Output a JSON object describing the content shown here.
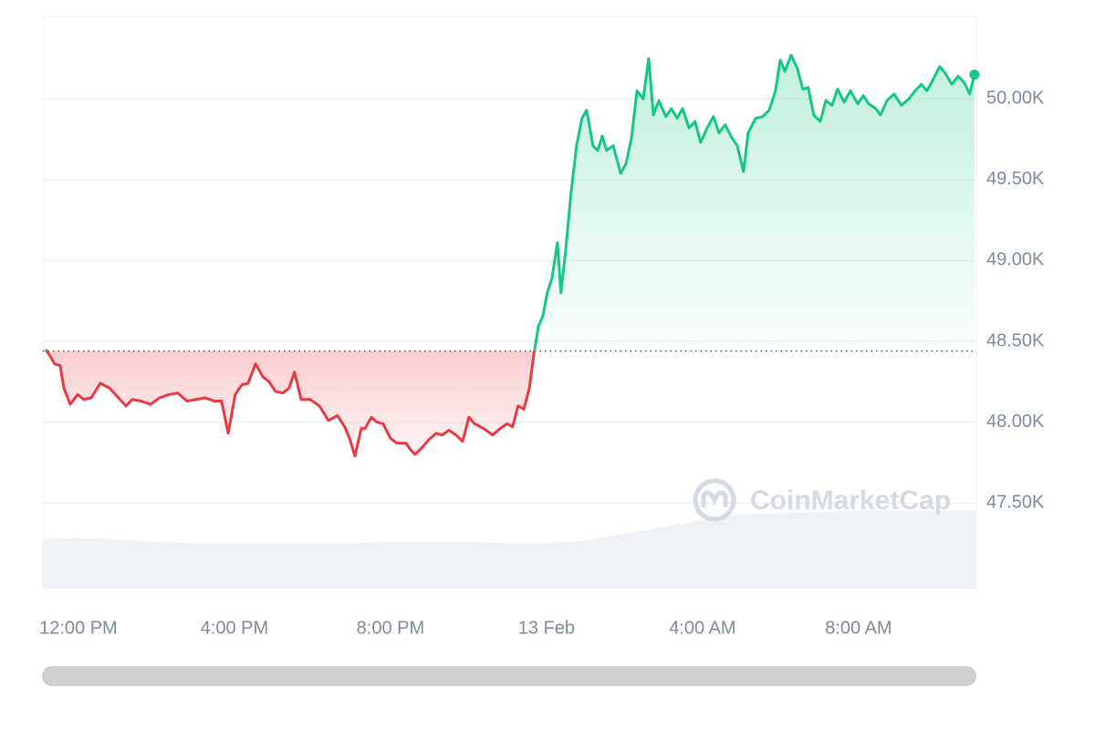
{
  "chart_data": {
    "type": "line",
    "baseline": 48440,
    "up_color": "#16c784",
    "down_color": "#ea3943",
    "watermark": "CoinMarketCap",
    "xlim": [
      11.09,
      35.02
    ],
    "ylim": [
      46970,
      50510
    ],
    "xticks": [
      {
        "value": 12,
        "label": "12:00 PM"
      },
      {
        "value": 16,
        "label": "4:00 PM"
      },
      {
        "value": 20,
        "label": "8:00 PM"
      },
      {
        "value": 24,
        "label": "13 Feb"
      },
      {
        "value": 28,
        "label": "4:00 AM"
      },
      {
        "value": 32,
        "label": "8:00 AM"
      }
    ],
    "yticks": [
      {
        "value": 47500,
        "label": "47.50K"
      },
      {
        "value": 48000,
        "label": "48.00K"
      },
      {
        "value": 48500,
        "label": "48.50K"
      },
      {
        "value": 49000,
        "label": "49.00K"
      },
      {
        "value": 49500,
        "label": "49.50K"
      },
      {
        "value": 50000,
        "label": "50.00K"
      }
    ],
    "grid": true,
    "x": [
      11.16,
      11.27,
      11.39,
      11.53,
      11.63,
      11.79,
      11.98,
      12.14,
      12.33,
      12.56,
      12.8,
      13.03,
      13.22,
      13.38,
      13.61,
      13.85,
      14.08,
      14.32,
      14.55,
      14.78,
      15.02,
      15.25,
      15.49,
      15.67,
      15.84,
      16.02,
      16.19,
      16.35,
      16.54,
      16.73,
      16.89,
      17.05,
      17.24,
      17.4,
      17.54,
      17.71,
      17.94,
      18.18,
      18.41,
      18.64,
      18.83,
      18.95,
      19.09,
      19.25,
      19.35,
      19.51,
      19.65,
      19.81,
      20.0,
      20.16,
      20.4,
      20.51,
      20.63,
      20.8,
      20.98,
      21.17,
      21.33,
      21.5,
      21.68,
      21.85,
      22.01,
      22.15,
      22.39,
      22.62,
      22.81,
      22.99,
      23.13,
      23.27,
      23.42,
      23.56,
      23.67,
      23.79,
      23.91,
      24.02,
      24.14,
      24.28,
      24.37,
      24.49,
      24.63,
      24.77,
      24.91,
      25.03,
      25.19,
      25.31,
      25.43,
      25.54,
      25.71,
      25.9,
      26.04,
      26.18,
      26.32,
      26.48,
      26.62,
      26.74,
      26.88,
      27.06,
      27.2,
      27.35,
      27.49,
      27.65,
      27.81,
      27.95,
      28.12,
      28.28,
      28.42,
      28.58,
      28.75,
      28.89,
      29.05,
      29.17,
      29.36,
      29.54,
      29.71,
      29.87,
      29.99,
      30.11,
      30.27,
      30.43,
      30.57,
      30.71,
      30.85,
      31.02,
      31.16,
      31.32,
      31.46,
      31.63,
      31.79,
      31.98,
      32.12,
      32.26,
      32.44,
      32.56,
      32.73,
      32.91,
      33.1,
      33.29,
      33.45,
      33.61,
      33.75,
      33.89,
      34.08,
      34.22,
      34.39,
      34.55,
      34.71,
      34.85,
      34.97
    ],
    "values": [
      48450,
      48410,
      48360,
      48350,
      48210,
      48110,
      48170,
      48140,
      48150,
      48240,
      48210,
      48150,
      48100,
      48140,
      48130,
      48110,
      48150,
      48170,
      48180,
      48130,
      48140,
      48150,
      48130,
      48130,
      47930,
      48170,
      48230,
      48240,
      48360,
      48280,
      48250,
      48190,
      48180,
      48210,
      48310,
      48140,
      48140,
      48100,
      48010,
      48040,
      47970,
      47900,
      47790,
      47960,
      47960,
      48030,
      48000,
      47990,
      47900,
      47870,
      47870,
      47830,
      47800,
      47840,
      47890,
      47930,
      47920,
      47950,
      47920,
      47880,
      48030,
      47990,
      47960,
      47920,
      47960,
      47990,
      47970,
      48100,
      48080,
      48210,
      48410,
      48590,
      48660,
      48800,
      48890,
      49110,
      48800,
      49060,
      49420,
      49710,
      49880,
      49930,
      49710,
      49680,
      49770,
      49680,
      49710,
      49540,
      49600,
      49760,
      50050,
      50000,
      50250,
      49900,
      49990,
      49890,
      49940,
      49880,
      49940,
      49820,
      49860,
      49730,
      49820,
      49890,
      49790,
      49840,
      49760,
      49710,
      49550,
      49790,
      49880,
      49890,
      49930,
      50050,
      50240,
      50170,
      50270,
      50190,
      50060,
      50070,
      49900,
      49860,
      49990,
      49960,
      50060,
      49980,
      50050,
      49970,
      50020,
      49970,
      49940,
      49900,
      49990,
      50030,
      49960,
      50000,
      50050,
      50090,
      50050,
      50110,
      50200,
      50160,
      50090,
      50140,
      50100,
      50030,
      50150
    ],
    "volume": {
      "color": "#eef1f5",
      "ylim": [
        0,
        100
      ],
      "x": [
        11.09,
        12,
        13,
        14,
        15,
        16,
        17,
        18,
        19,
        20,
        21,
        22,
        23,
        24,
        25,
        26,
        27,
        28,
        29,
        30,
        31,
        32,
        33,
        34,
        35.02
      ],
      "values": [
        36,
        37,
        36,
        34,
        33,
        33,
        33,
        33,
        33,
        34,
        34,
        34,
        33,
        33,
        35,
        40,
        45,
        50,
        54,
        55,
        56,
        57,
        57,
        57,
        57
      ]
    }
  }
}
